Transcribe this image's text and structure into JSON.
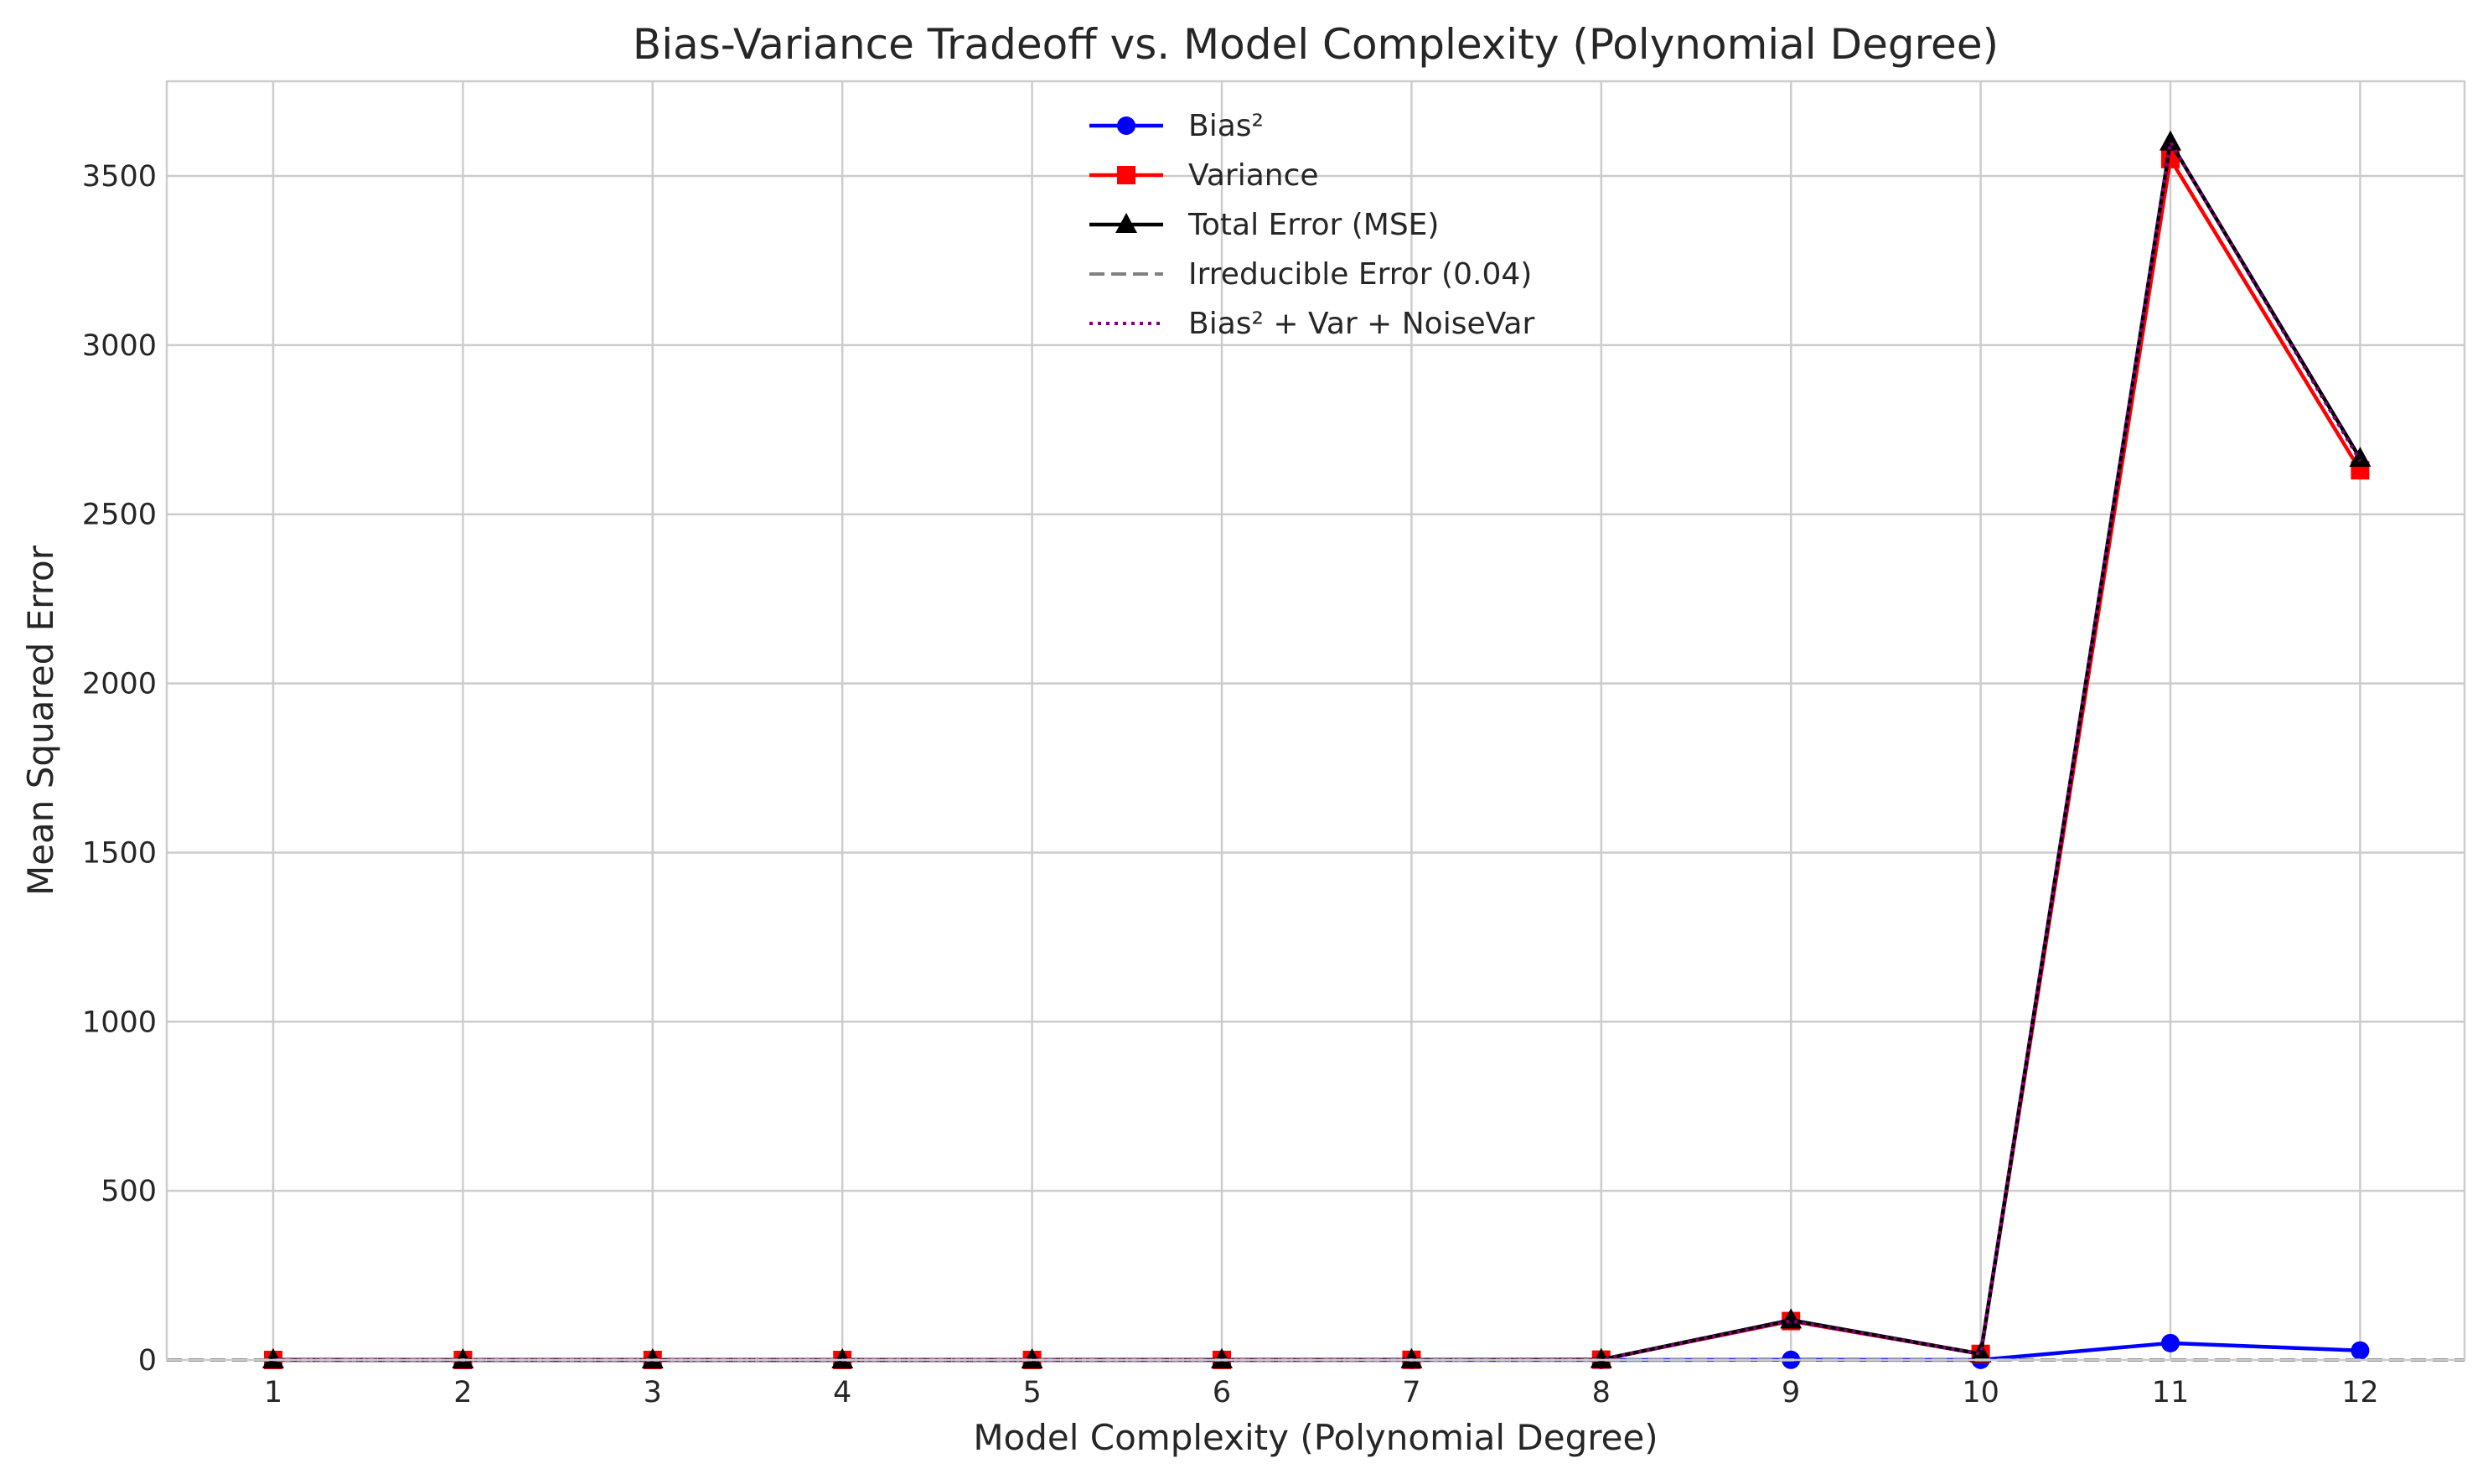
{
  "chart_data": {
    "type": "line",
    "title": "Bias-Variance Tradeoff vs. Model Complexity (Polynomial Degree)",
    "xlabel": "Model Complexity (Polynomial Degree)",
    "ylabel": "Mean Squared Error",
    "categories": [
      "1",
      "2",
      "3",
      "4",
      "5",
      "6",
      "7",
      "8",
      "9",
      "10",
      "11",
      "12"
    ],
    "ylim": [
      0,
      3780
    ],
    "yticks": [
      0,
      500,
      1000,
      1500,
      2000,
      2500,
      3000,
      3500
    ],
    "grid": true,
    "legend_position": "top-center",
    "series": [
      {
        "name": "Bias²",
        "color": "#0000ff",
        "marker": "circle",
        "line_style": "solid",
        "values": [
          0.2,
          0.05,
          0.01,
          0.01,
          0.01,
          0.01,
          0.01,
          0.01,
          0.5,
          0.3,
          50,
          28
        ]
      },
      {
        "name": "Variance",
        "color": "#ff0000",
        "marker": "square",
        "line_style": "solid",
        "values": [
          0.01,
          0.02,
          0.03,
          0.05,
          0.1,
          0.2,
          0.5,
          1,
          115,
          18,
          3550,
          2630
        ]
      },
      {
        "name": "Total Error (MSE)",
        "color": "#000000",
        "marker": "triangle",
        "line_style": "solid",
        "values": [
          0.25,
          0.11,
          0.08,
          0.1,
          0.15,
          0.25,
          0.55,
          1.05,
          118,
          18,
          3600,
          2665
        ]
      },
      {
        "name": "Irreducible Error (0.04)",
        "color": "#808080",
        "marker": "none",
        "line_style": "dashed",
        "values": [
          0.04,
          0.04,
          0.04,
          0.04,
          0.04,
          0.04,
          0.04,
          0.04,
          0.04,
          0.04,
          0.04,
          0.04
        ]
      },
      {
        "name": "Bias² + Var + NoiseVar",
        "color": "#800080",
        "marker": "none",
        "line_style": "dotted",
        "values": [
          0.25,
          0.11,
          0.08,
          0.1,
          0.15,
          0.25,
          0.55,
          1.05,
          115.5,
          18.3,
          3600,
          2658
        ]
      }
    ]
  }
}
